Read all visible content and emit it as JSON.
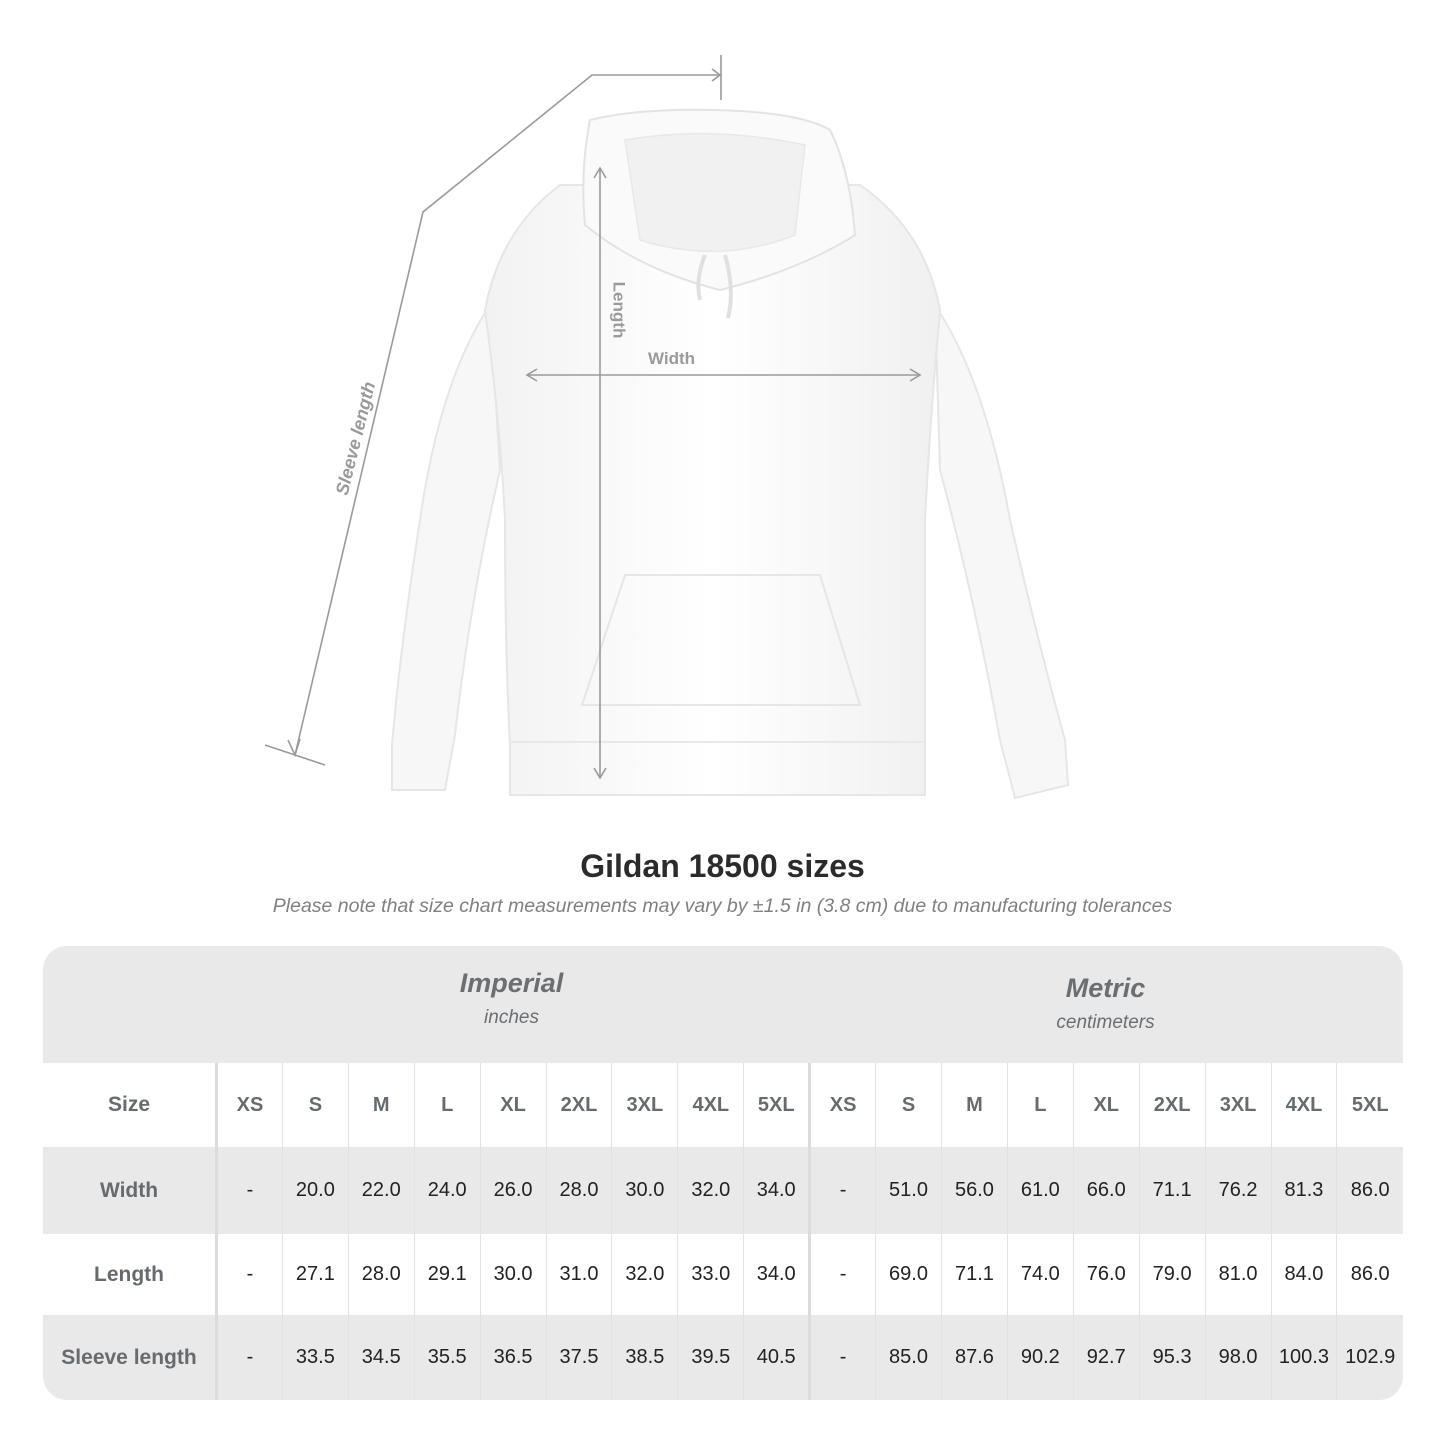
{
  "figure": {
    "labels": {
      "length": "Length",
      "width": "Width",
      "sleeve_length": "Sleeve length"
    },
    "garment": "hoodie",
    "garment_color": "#ffffff",
    "line_color": "#9a9a9a"
  },
  "title": "Gildan 18500 sizes",
  "subtitle": "Please note that size chart measurements may vary by ±1.5 in (3.8 cm) due to manufacturing tolerances",
  "table": {
    "imperial": {
      "name": "Imperial",
      "unit": "inches"
    },
    "metric": {
      "name": "Metric",
      "unit": "centimeters"
    },
    "size_label": "Size",
    "sizes": [
      "XS",
      "S",
      "M",
      "L",
      "XL",
      "2XL",
      "3XL",
      "4XL",
      "5XL"
    ],
    "rows": [
      {
        "label": "Width",
        "imperial": [
          "-",
          "20.0",
          "22.0",
          "24.0",
          "26.0",
          "28.0",
          "30.0",
          "32.0",
          "34.0"
        ],
        "metric": [
          "-",
          "51.0",
          "56.0",
          "61.0",
          "66.0",
          "71.1",
          "76.2",
          "81.3",
          "86.0"
        ]
      },
      {
        "label": "Length",
        "imperial": [
          "-",
          "27.1",
          "28.0",
          "29.1",
          "30.0",
          "31.0",
          "32.0",
          "33.0",
          "34.0"
        ],
        "metric": [
          "-",
          "69.0",
          "71.1",
          "74.0",
          "76.0",
          "79.0",
          "81.0",
          "84.0",
          "86.0"
        ]
      },
      {
        "label": "Sleeve length",
        "imperial": [
          "-",
          "33.5",
          "34.5",
          "35.5",
          "36.5",
          "37.5",
          "38.5",
          "39.5",
          "40.5"
        ],
        "metric": [
          "-",
          "85.0",
          "87.6",
          "90.2",
          "92.7",
          "95.3",
          "98.0",
          "100.3",
          "102.9"
        ]
      }
    ]
  }
}
